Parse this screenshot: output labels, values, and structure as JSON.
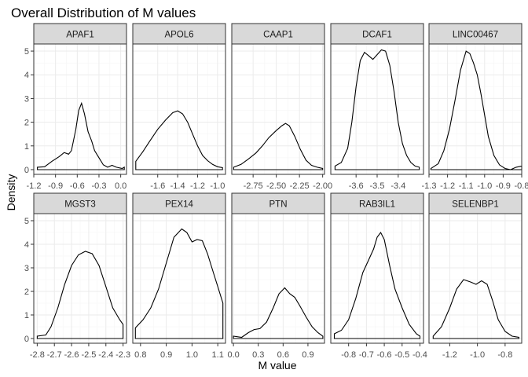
{
  "chart_data": {
    "type": "line",
    "title": "Overall Distribution of M values",
    "xlabel": "M value",
    "ylabel": "Density",
    "grid": true,
    "facet_scales": "free_x",
    "ylim": [
      -0.2,
      5.3
    ],
    "yticks": [
      0,
      1,
      2,
      3,
      4,
      5
    ],
    "panels": [
      {
        "label": "APAF1",
        "xlim": [
          -1.2,
          0.08
        ],
        "xticks": [
          -1.2,
          -0.9,
          -0.6,
          -0.3,
          0.0
        ],
        "xtick_labels": [
          "-1.2",
          "-0.9",
          "-0.6",
          "-0.3",
          "0.0"
        ],
        "x": [
          -1.15,
          -1.05,
          -0.95,
          -0.85,
          -0.78,
          -0.72,
          -0.68,
          -0.62,
          -0.58,
          -0.54,
          -0.5,
          -0.45,
          -0.4,
          -0.36,
          -0.3,
          -0.24,
          -0.18,
          -0.12,
          -0.06,
          0.02,
          0.05
        ],
        "y": [
          0.1,
          0.12,
          0.35,
          0.55,
          0.72,
          0.65,
          0.8,
          1.7,
          2.5,
          2.8,
          2.35,
          1.6,
          1.2,
          0.8,
          0.5,
          0.2,
          0.1,
          0.18,
          0.1,
          0.05,
          0.1
        ]
      },
      {
        "label": "APOL6",
        "xlim": [
          -1.85,
          -0.92
        ],
        "xticks": [
          -1.6,
          -1.4,
          -1.2,
          -1.0
        ],
        "xtick_labels": [
          "-1.6",
          "-1.4",
          "-1.2",
          "-1.0"
        ],
        "x": [
          -1.82,
          -1.75,
          -1.68,
          -1.6,
          -1.52,
          -1.45,
          -1.4,
          -1.35,
          -1.3,
          -1.25,
          -1.2,
          -1.15,
          -1.1,
          -1.05,
          -1.0,
          -0.95
        ],
        "y": [
          0.35,
          0.75,
          1.2,
          1.7,
          2.1,
          2.4,
          2.48,
          2.35,
          2.0,
          1.5,
          1.0,
          0.6,
          0.38,
          0.22,
          0.12,
          0.08
        ]
      },
      {
        "label": "CAAP1",
        "xlim": [
          -2.98,
          -1.98
        ],
        "xticks": [
          -2.75,
          -2.5,
          -2.25,
          -2.0
        ],
        "xtick_labels": [
          "-2.75",
          "-2.50",
          "-2.25",
          "-2.00"
        ],
        "x": [
          -2.96,
          -2.88,
          -2.8,
          -2.72,
          -2.65,
          -2.58,
          -2.5,
          -2.44,
          -2.4,
          -2.36,
          -2.3,
          -2.24,
          -2.18,
          -2.12,
          -2.06,
          -2.0
        ],
        "y": [
          0.1,
          0.22,
          0.45,
          0.7,
          1.0,
          1.35,
          1.65,
          1.85,
          1.95,
          1.85,
          1.4,
          0.85,
          0.4,
          0.18,
          0.1,
          0.05
        ]
      },
      {
        "label": "DCAF1",
        "xlim": [
          -3.72,
          -3.28
        ],
        "xticks": [
          -3.6,
          -3.5,
          -3.4
        ],
        "xtick_labels": [
          "-3.6",
          "-3.5",
          "-3.4"
        ],
        "x": [
          -3.7,
          -3.67,
          -3.64,
          -3.62,
          -3.6,
          -3.58,
          -3.56,
          -3.54,
          -3.52,
          -3.5,
          -3.48,
          -3.46,
          -3.44,
          -3.42,
          -3.4,
          -3.38,
          -3.36,
          -3.34,
          -3.32,
          -3.3
        ],
        "y": [
          0.15,
          0.3,
          0.9,
          2.0,
          3.5,
          4.6,
          4.95,
          4.8,
          4.65,
          4.85,
          5.05,
          5.0,
          4.4,
          3.3,
          2.0,
          1.1,
          0.6,
          0.3,
          0.15,
          0.1
        ]
      },
      {
        "label": "LINC00467",
        "xlim": [
          -1.3,
          -0.8
        ],
        "xticks": [
          -1.3,
          -1.2,
          -1.1,
          -1.0,
          -0.9,
          -0.8
        ],
        "xtick_labels": [
          "-1.3",
          "-1.2",
          "-1.1",
          "-1.0",
          "-0.9",
          "-0.8"
        ],
        "x": [
          -1.29,
          -1.25,
          -1.22,
          -1.19,
          -1.16,
          -1.13,
          -1.1,
          -1.08,
          -1.06,
          -1.04,
          -1.02,
          -1.0,
          -0.98,
          -0.95,
          -0.92,
          -0.89,
          -0.86,
          -0.83,
          -0.8
        ],
        "y": [
          0.05,
          0.25,
          0.8,
          1.7,
          2.9,
          4.2,
          5.0,
          4.9,
          4.5,
          4.0,
          3.2,
          2.3,
          1.4,
          0.6,
          0.2,
          0.05,
          0.0,
          0.1,
          0.15
        ]
      },
      {
        "label": "MGST3",
        "xlim": [
          -2.82,
          -2.28
        ],
        "xticks": [
          -2.8,
          -2.7,
          -2.6,
          -2.5,
          -2.4,
          -2.3
        ],
        "xtick_labels": [
          "-2.8",
          "-2.7",
          "-2.6",
          "-2.5",
          "-2.4",
          "-2.3"
        ],
        "x": [
          -2.8,
          -2.75,
          -2.72,
          -2.68,
          -2.64,
          -2.6,
          -2.56,
          -2.52,
          -2.48,
          -2.44,
          -2.4,
          -2.36,
          -2.32,
          -2.3
        ],
        "y": [
          0.1,
          0.15,
          0.5,
          1.3,
          2.3,
          3.1,
          3.55,
          3.7,
          3.6,
          3.1,
          2.2,
          1.3,
          0.8,
          0.6
        ]
      },
      {
        "label": "PEX14",
        "xlim": [
          0.77,
          1.13
        ],
        "xticks": [
          0.8,
          0.9,
          1.0,
          1.1
        ],
        "xtick_labels": [
          "0.8",
          "0.9",
          "1.0",
          "1.1"
        ],
        "x": [
          0.78,
          0.81,
          0.84,
          0.87,
          0.9,
          0.93,
          0.96,
          0.98,
          1.0,
          1.02,
          1.04,
          1.06,
          1.08,
          1.1,
          1.12
        ],
        "y": [
          0.45,
          0.8,
          1.3,
          2.1,
          3.2,
          4.3,
          4.65,
          4.5,
          4.1,
          4.2,
          4.15,
          3.6,
          2.9,
          2.2,
          1.5
        ]
      },
      {
        "label": "PTN",
        "xlim": [
          -0.02,
          1.1
        ],
        "xticks": [
          0.0,
          0.3,
          0.6,
          0.9
        ],
        "xtick_labels": [
          "0.0",
          "0.3",
          "0.6",
          "0.9"
        ],
        "x": [
          0.0,
          0.1,
          0.18,
          0.25,
          0.32,
          0.4,
          0.48,
          0.55,
          0.62,
          0.68,
          0.74,
          0.8,
          0.88,
          0.95,
          1.02,
          1.08
        ],
        "y": [
          0.1,
          0.05,
          0.25,
          0.38,
          0.42,
          0.7,
          1.3,
          1.9,
          2.15,
          1.9,
          1.75,
          1.4,
          0.9,
          0.5,
          0.25,
          0.1
        ]
      },
      {
        "label": "RAB3IL1",
        "xlim": [
          -0.9,
          -0.38
        ],
        "xticks": [
          -0.8,
          -0.7,
          -0.6,
          -0.5,
          -0.4
        ],
        "xtick_labels": [
          "-0.8",
          "-0.7",
          "-0.6",
          "-0.5",
          "-0.4"
        ],
        "x": [
          -0.88,
          -0.84,
          -0.8,
          -0.76,
          -0.72,
          -0.69,
          -0.66,
          -0.64,
          -0.62,
          -0.6,
          -0.57,
          -0.54,
          -0.5,
          -0.46,
          -0.42,
          -0.4
        ],
        "y": [
          0.2,
          0.35,
          0.8,
          1.7,
          2.8,
          3.3,
          3.8,
          4.3,
          4.5,
          4.2,
          3.1,
          2.1,
          1.3,
          0.6,
          0.2,
          0.1
        ]
      },
      {
        "label": "SELENBP1",
        "xlim": [
          -1.35,
          -0.68
        ],
        "xticks": [
          -1.2,
          -1.0,
          -0.8
        ],
        "xtick_labels": [
          "-1.2",
          "-1.0",
          "-0.8"
        ],
        "x": [
          -1.32,
          -1.26,
          -1.2,
          -1.15,
          -1.1,
          -1.05,
          -1.01,
          -0.97,
          -0.93,
          -0.89,
          -0.85,
          -0.8,
          -0.75,
          -0.7
        ],
        "y": [
          0.1,
          0.5,
          1.3,
          2.1,
          2.5,
          2.4,
          2.3,
          2.45,
          2.3,
          1.6,
          0.8,
          0.3,
          0.1,
          0.05
        ]
      }
    ]
  }
}
